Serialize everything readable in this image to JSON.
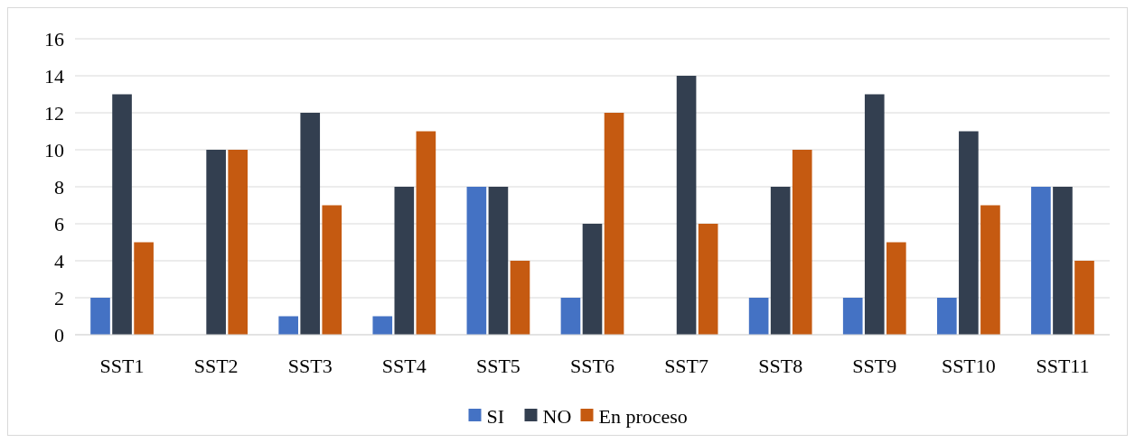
{
  "chart_data": {
    "type": "bar",
    "categories": [
      "SST1",
      "SST2",
      "SST3",
      "SST4",
      "SST5",
      "SST6",
      "SST7",
      "SST8",
      "SST9",
      "SST10",
      "SST11"
    ],
    "series": [
      {
        "name": "SI",
        "color": "#4472c4",
        "values": [
          2,
          0,
          1,
          1,
          8,
          2,
          0,
          2,
          2,
          2,
          8
        ]
      },
      {
        "name": "NO",
        "color": "#333f50",
        "values": [
          13,
          10,
          12,
          8,
          8,
          6,
          14,
          8,
          13,
          11,
          8
        ]
      },
      {
        "name": "En proceso",
        "color": "#c55a11",
        "values": [
          5,
          10,
          7,
          11,
          4,
          12,
          6,
          10,
          5,
          7,
          4
        ]
      }
    ],
    "ylim": [
      0,
      16
    ],
    "yticks": [
      0,
      2,
      4,
      6,
      8,
      10,
      12,
      14,
      16
    ],
    "grid": "y",
    "legend": "bottom"
  }
}
